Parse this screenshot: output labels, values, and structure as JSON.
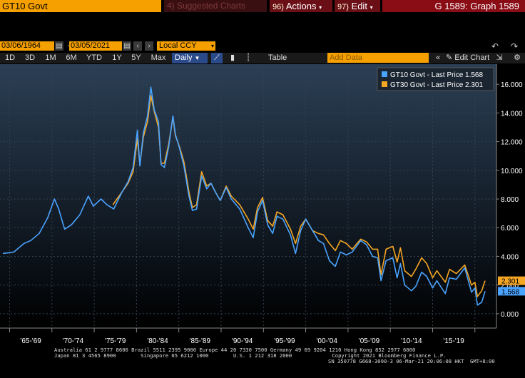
{
  "header": {
    "ticker": "GT10 Govt",
    "suggested": "4) Suggested Charts",
    "actions_num": "96)",
    "actions_label": "Actions",
    "edit_num": "97)",
    "edit_label": "Edit",
    "graph_label": "G 1589: Graph 1589"
  },
  "dates": {
    "start": "03/06/1964",
    "end": "03/05/2021",
    "currency": "Local CCY"
  },
  "periods": [
    "1D",
    "3D",
    "1M",
    "6M",
    "YTD",
    "1Y",
    "5Y",
    "Max"
  ],
  "frequency": "Daily",
  "table_label": "Table",
  "add_data_placeholder": "Add Data",
  "edit_chart_label": "Edit Chart",
  "legend": [
    {
      "label": "GT10 Govt - Last Price 1.568",
      "color": "#4aa3ff"
    },
    {
      "label": "GT30 Govt - Last Price 2.301",
      "color": "#f5a623"
    }
  ],
  "last_value_tags": [
    "2.301",
    "1.568"
  ],
  "colors": {
    "gt10": "#4aa3ff",
    "gt30": "#f5a623",
    "accent_orange": "#f6a000",
    "menu_red": "#6b0f16"
  },
  "chart_data": {
    "type": "line",
    "xlabels": [
      "'65-'69",
      "'70-'74",
      "'75-'79",
      "'80-'84",
      "'85-'89",
      "'90-'94",
      "'95-'99",
      "'00-'04",
      "'05-'09",
      "'10-'14",
      "'15-'19"
    ],
    "ytick_labels": [
      "0.000",
      "2.000",
      "4.000",
      "6.000",
      "8.000",
      "10.000",
      "12.000",
      "14.000",
      "16.000"
    ],
    "ylim": [
      -1.0,
      17.4
    ],
    "xlim": [
      1964.2,
      2021.2
    ],
    "series": [
      {
        "name": "GT10 Govt",
        "points": [
          [
            1964.2,
            4.2
          ],
          [
            1965.5,
            4.3
          ],
          [
            1966.7,
            4.9
          ],
          [
            1967.5,
            5.1
          ],
          [
            1968.5,
            5.6
          ],
          [
            1969.5,
            6.7
          ],
          [
            1970.3,
            8.0
          ],
          [
            1970.8,
            7.3
          ],
          [
            1971.5,
            5.9
          ],
          [
            1972.3,
            6.2
          ],
          [
            1973.3,
            6.9
          ],
          [
            1974.3,
            8.2
          ],
          [
            1974.9,
            7.5
          ],
          [
            1975.8,
            8.0
          ],
          [
            1976.5,
            7.6
          ],
          [
            1977.3,
            7.3
          ],
          [
            1978.3,
            8.5
          ],
          [
            1979.0,
            9.2
          ],
          [
            1979.6,
            10.2
          ],
          [
            1980.1,
            12.8
          ],
          [
            1980.4,
            10.3
          ],
          [
            1980.8,
            12.6
          ],
          [
            1981.3,
            13.8
          ],
          [
            1981.7,
            15.8
          ],
          [
            1982.1,
            14.2
          ],
          [
            1982.6,
            13.4
          ],
          [
            1982.9,
            10.4
          ],
          [
            1983.3,
            10.2
          ],
          [
            1983.8,
            11.6
          ],
          [
            1984.3,
            13.8
          ],
          [
            1984.6,
            12.5
          ],
          [
            1985.1,
            11.5
          ],
          [
            1985.6,
            10.3
          ],
          [
            1986.2,
            8.2
          ],
          [
            1986.6,
            7.2
          ],
          [
            1987.1,
            7.3
          ],
          [
            1987.7,
            9.6
          ],
          [
            1988.3,
            8.7
          ],
          [
            1988.8,
            9.1
          ],
          [
            1989.4,
            8.4
          ],
          [
            1989.9,
            7.9
          ],
          [
            1990.6,
            8.8
          ],
          [
            1991.2,
            8.0
          ],
          [
            1992.2,
            7.3
          ],
          [
            1993.2,
            6.0
          ],
          [
            1993.8,
            5.3
          ],
          [
            1994.3,
            7.1
          ],
          [
            1994.9,
            7.9
          ],
          [
            1995.5,
            6.2
          ],
          [
            1996.1,
            5.6
          ],
          [
            1996.6,
            6.8
          ],
          [
            1997.3,
            6.6
          ],
          [
            1998.2,
            5.5
          ],
          [
            1998.8,
            4.2
          ],
          [
            1999.4,
            5.8
          ],
          [
            2000.0,
            6.6
          ],
          [
            2000.8,
            5.8
          ],
          [
            2001.5,
            5.1
          ],
          [
            2002.1,
            4.9
          ],
          [
            2002.8,
            3.7
          ],
          [
            2003.5,
            3.3
          ],
          [
            2004.1,
            4.3
          ],
          [
            2004.8,
            4.1
          ],
          [
            2005.5,
            4.3
          ],
          [
            2006.5,
            5.1
          ],
          [
            2007.2,
            4.8
          ],
          [
            2007.9,
            4.0
          ],
          [
            2008.5,
            3.9
          ],
          [
            2008.9,
            2.3
          ],
          [
            2009.5,
            3.7
          ],
          [
            2010.3,
            3.9
          ],
          [
            2010.8,
            2.5
          ],
          [
            2011.2,
            3.5
          ],
          [
            2011.7,
            2.0
          ],
          [
            2012.5,
            1.6
          ],
          [
            2013.0,
            1.9
          ],
          [
            2013.7,
            2.9
          ],
          [
            2014.3,
            2.6
          ],
          [
            2015.0,
            1.8
          ],
          [
            2015.5,
            2.3
          ],
          [
            2016.5,
            1.4
          ],
          [
            2017.0,
            2.5
          ],
          [
            2017.8,
            2.4
          ],
          [
            2018.8,
            3.2
          ],
          [
            2019.6,
            1.5
          ],
          [
            2020.0,
            1.8
          ],
          [
            2020.3,
            0.6
          ],
          [
            2020.8,
            0.8
          ],
          [
            2021.2,
            1.568
          ]
        ]
      },
      {
        "name": "GT30 Govt",
        "points": [
          [
            1977.2,
            7.6
          ],
          [
            1978.3,
            8.5
          ],
          [
            1979.0,
            9.1
          ],
          [
            1979.6,
            9.9
          ],
          [
            1980.1,
            12.2
          ],
          [
            1980.4,
            10.4
          ],
          [
            1980.8,
            12.3
          ],
          [
            1981.3,
            13.4
          ],
          [
            1981.7,
            15.2
          ],
          [
            1982.1,
            14.1
          ],
          [
            1982.6,
            13.0
          ],
          [
            1982.9,
            10.5
          ],
          [
            1983.3,
            10.5
          ],
          [
            1983.8,
            11.8
          ],
          [
            1984.3,
            13.7
          ],
          [
            1984.6,
            12.4
          ],
          [
            1985.1,
            11.6
          ],
          [
            1985.6,
            10.6
          ],
          [
            1986.2,
            8.5
          ],
          [
            1986.6,
            7.4
          ],
          [
            1987.1,
            7.6
          ],
          [
            1987.7,
            9.9
          ],
          [
            1988.3,
            8.9
          ],
          [
            1988.8,
            9.1
          ],
          [
            1989.4,
            8.4
          ],
          [
            1989.9,
            7.9
          ],
          [
            1990.6,
            8.9
          ],
          [
            1991.2,
            8.2
          ],
          [
            1992.2,
            7.6
          ],
          [
            1993.2,
            6.6
          ],
          [
            1993.8,
            5.9
          ],
          [
            1994.3,
            7.4
          ],
          [
            1994.9,
            8.1
          ],
          [
            1995.5,
            6.5
          ],
          [
            1996.1,
            6.1
          ],
          [
            1996.6,
            7.1
          ],
          [
            1997.3,
            6.9
          ],
          [
            1998.2,
            5.9
          ],
          [
            1998.8,
            4.9
          ],
          [
            1999.4,
            6.1
          ],
          [
            2000.0,
            6.6
          ],
          [
            2000.8,
            5.8
          ],
          [
            2001.5,
            5.6
          ],
          [
            2002.1,
            5.5
          ],
          [
            2002.8,
            4.9
          ],
          [
            2003.5,
            4.4
          ],
          [
            2004.1,
            5.1
          ],
          [
            2004.8,
            4.9
          ],
          [
            2005.5,
            4.5
          ],
          [
            2006.5,
            5.2
          ],
          [
            2007.2,
            5.0
          ],
          [
            2007.9,
            4.5
          ],
          [
            2008.5,
            4.5
          ],
          [
            2008.9,
            2.7
          ],
          [
            2009.5,
            4.5
          ],
          [
            2010.3,
            4.7
          ],
          [
            2010.8,
            3.6
          ],
          [
            2011.2,
            4.6
          ],
          [
            2011.7,
            3.0
          ],
          [
            2012.5,
            2.6
          ],
          [
            2013.0,
            3.1
          ],
          [
            2013.7,
            3.9
          ],
          [
            2014.3,
            3.5
          ],
          [
            2015.0,
            2.5
          ],
          [
            2015.5,
            3.0
          ],
          [
            2016.5,
            2.2
          ],
          [
            2017.0,
            3.1
          ],
          [
            2017.8,
            2.8
          ],
          [
            2018.8,
            3.4
          ],
          [
            2019.6,
            2.0
          ],
          [
            2020.0,
            2.2
          ],
          [
            2020.3,
            1.2
          ],
          [
            2020.8,
            1.6
          ],
          [
            2021.2,
            2.301
          ]
        ]
      }
    ]
  },
  "footer": {
    "line1": "Australia 61 2 9777 8600 Brazil 5511 2395 9000 Europe 44 20 7330 7500 Germany 49 69 9204 1210 Hong Kong 852 2977 6000",
    "line2": "Japan 81 3 4565 8900        Singapore 65 6212 1000        U.S. 1 212 318 2000             Copyright 2021 Bloomberg Finance L.P.",
    "line3": "SN 350778 G668-3090-3 06-Mar-21 20:06:08 HKT  GMT+8:00"
  }
}
